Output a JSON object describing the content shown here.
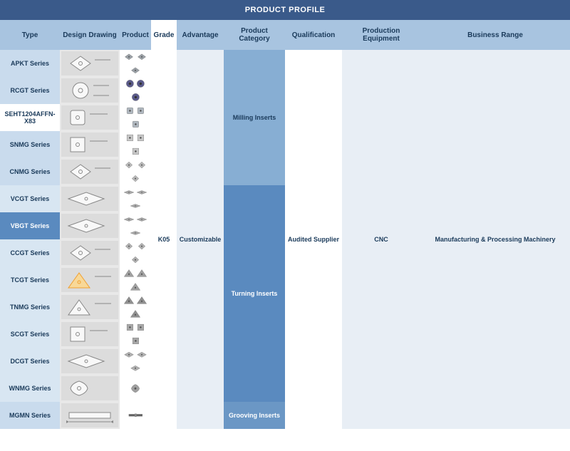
{
  "title": "PRODUCT PROFILE",
  "headers": {
    "type": "Type",
    "design": "Design Drawing",
    "product": "Product",
    "grade": "Grade",
    "advantage": "Advantage",
    "category": "Product Category",
    "qualification": "Qualification",
    "equipment": "Production Equipment",
    "business": "Business Range"
  },
  "rows": [
    {
      "type": "APKT Series",
      "shape": "rhombus",
      "bg": "row-alt1",
      "prodColor": "#9aa0a6"
    },
    {
      "type": "RCGT Series",
      "shape": "circle",
      "bg": "row-alt1",
      "prodColor": "#5a5a8a"
    },
    {
      "type": "SEHT1204AFFN-X83",
      "shape": "square-r",
      "bg": "row-alt2",
      "prodColor": "#b0b8c0"
    },
    {
      "type": "SNMG Series",
      "shape": "square",
      "bg": "row-alt1",
      "prodColor": "#c8c8c8"
    },
    {
      "type": "CNMG Series",
      "shape": "rhombus80",
      "bg": "row-alt1",
      "prodColor": "#b8b8b8"
    },
    {
      "type": "VCGT Series",
      "shape": "diamond35",
      "bg": "row-alt3",
      "prodColor": "#a8a8a8"
    },
    {
      "type": "VBGT Series",
      "shape": "diamond35",
      "bg": "row-highlight",
      "prodColor": "#a8a8a8"
    },
    {
      "type": "CCGT Series",
      "shape": "rhombus80",
      "bg": "row-alt3",
      "prodColor": "#b0b0b0"
    },
    {
      "type": "TCGT Series",
      "shape": "triangle",
      "bg": "row-alt3",
      "prodColor": "#a0a0a0",
      "drawColor": "#f0a030"
    },
    {
      "type": "TNMG Series",
      "shape": "triangle",
      "bg": "row-alt3",
      "prodColor": "#909090"
    },
    {
      "type": "SCGT Series",
      "shape": "square",
      "bg": "row-alt3",
      "prodColor": "#a8a8a8"
    },
    {
      "type": "DCGT Series",
      "shape": "diamond55",
      "bg": "row-alt3",
      "prodColor": "#b0b0b0"
    },
    {
      "type": "WNMG Series",
      "shape": "trigon",
      "bg": "row-alt3",
      "prodColor": "#a0a0a0"
    },
    {
      "type": "MGMN Series",
      "shape": "bar",
      "bg": "row-alt1",
      "prodColor": "#606060"
    }
  ],
  "categories": {
    "milling": "Milling Inserts",
    "turning": "Turning Inserts",
    "grooving": "Grooving Inserts"
  },
  "merged": {
    "grade": "K05",
    "advantage": "Customizable",
    "qualification": "Audited Supplier",
    "equipment": "CNC",
    "business": "Manufacturing & Processing Machinery"
  },
  "style": {
    "title_bg": "#3a5a8a",
    "header_bg": "#a8c4e0",
    "draw_bg": "#dcdcdc"
  }
}
